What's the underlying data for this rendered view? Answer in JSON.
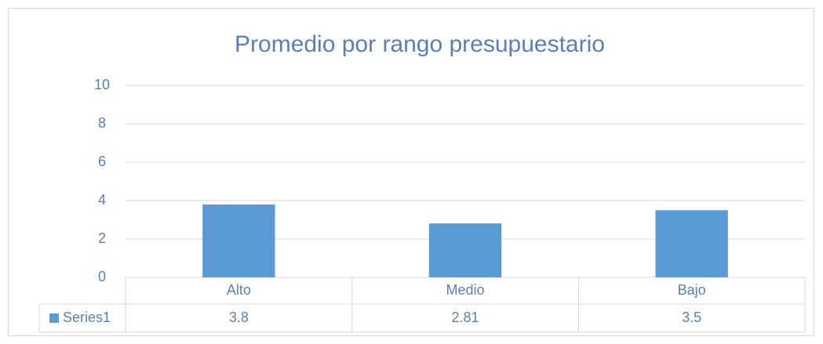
{
  "chart_data": {
    "type": "bar",
    "title": "Promedio por rango presupuestario",
    "categories": [
      "Alto",
      "Medio",
      "Bajo"
    ],
    "series": [
      {
        "name": "Series1",
        "color": "#5b9bd5",
        "values": [
          3.8,
          2.81,
          3.5
        ]
      }
    ],
    "ylim": [
      0,
      10
    ],
    "yticks": [
      0,
      2,
      4,
      6,
      8,
      10
    ],
    "grid": true
  }
}
